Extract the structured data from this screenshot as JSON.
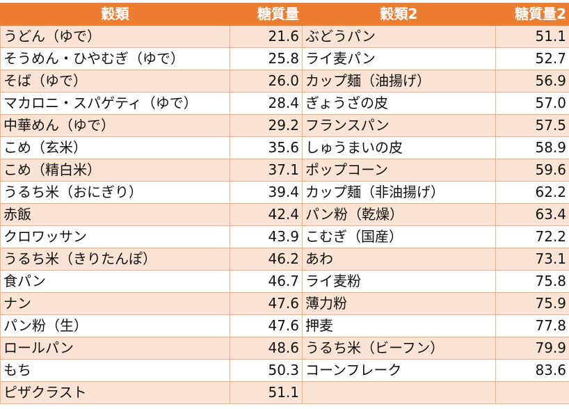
{
  "headers": [
    "穀類",
    "糖質量",
    "穀類2",
    "糖質量2"
  ],
  "rows": [
    [
      "うどん（ゆで）",
      "21.6",
      "ぶどうパン",
      "51.1"
    ],
    [
      "そうめん・ひやむぎ（ゆで）",
      "25.8",
      "ライ麦パン",
      "52.7"
    ],
    [
      "そば（ゆで）",
      "26.0",
      "カップ麺（油揚げ）",
      "56.9"
    ],
    [
      "マカロニ・スパゲティ（ゆで）",
      "28.4",
      "ぎょうざの皮",
      "57.0"
    ],
    [
      "中華めん（ゆで）",
      "29.2",
      "フランスパン",
      "57.5"
    ],
    [
      "こめ（玄米）",
      "35.6",
      "しゅうまいの皮",
      "58.9"
    ],
    [
      "こめ（精白米）",
      "37.1",
      "ポップコーン",
      "59.6"
    ],
    [
      "うるち米（おにぎり）",
      "39.4",
      "カップ麺（非油揚げ）",
      "62.2"
    ],
    [
      "赤飯",
      "42.4",
      "パン粉（乾燥）",
      "63.4"
    ],
    [
      "クロワッサン",
      "43.9",
      "こむぎ（国産）",
      "72.2"
    ],
    [
      "うるち米（きりたんぽ）",
      "46.2",
      "あわ",
      "73.1"
    ],
    [
      "食パン",
      "46.7",
      "ライ麦粉",
      "75.8"
    ],
    [
      "ナン",
      "47.6",
      "薄力粉",
      "75.9"
    ],
    [
      "パン粉（生）",
      "47.6",
      "押麦",
      "77.8"
    ],
    [
      "ロールパン",
      "48.6",
      "うるち米（ビーフン）",
      "79.9"
    ],
    [
      "もち",
      "50.3",
      "コーンフレーク",
      "83.6"
    ],
    [
      "ピザクラスト",
      "51.1",
      "",
      ""
    ]
  ],
  "colors": {
    "header_bg": "#ed7d31",
    "band_bg": "#fbe4d5",
    "border": "#f4b183"
  }
}
